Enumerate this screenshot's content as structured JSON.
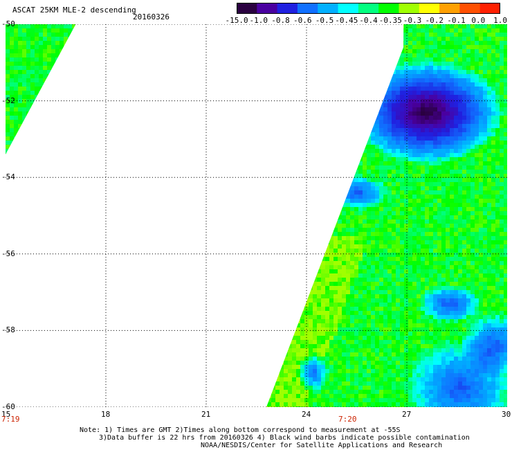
{
  "header": {
    "title": "ASCAT 25KM MLE-2 descending",
    "date": "20160326"
  },
  "colorbar": {
    "labels": [
      "-15.0",
      "-1.0",
      "-0.8",
      "-0.6",
      "-0.5",
      "-0.45",
      "-0.4",
      "-0.35",
      "-0.3",
      "-0.2",
      "-0.1",
      "0.0",
      "1.0"
    ],
    "colors": [
      "#2a0040",
      "#4a00a0",
      "#2020e0",
      "#1070ff",
      "#00b0ff",
      "#00ffff",
      "#00ff80",
      "#00ff00",
      "#a0ff00",
      "#ffff00",
      "#ffa000",
      "#ff5000",
      "#ff2000"
    ]
  },
  "map": {
    "lon_ticks": [
      "15",
      "18",
      "21",
      "24",
      "27",
      "30"
    ],
    "lat_ticks": [
      "-50",
      "-52",
      "-54",
      "-56",
      "-58",
      "-60"
    ],
    "time_labels": [
      "7:19",
      "7:20"
    ],
    "grid_color": "#000000"
  },
  "notes": {
    "line1": "Note: 1) Times are GMT 2)Times along bottom correspond to measurement at -55S",
    "line2": "3)Data buffer is 22 hrs from 20160326 4) Black wind barbs indicate possible contamination",
    "line3": "NOAA/NESDIS/Center for Satellite Applications and Research"
  }
}
